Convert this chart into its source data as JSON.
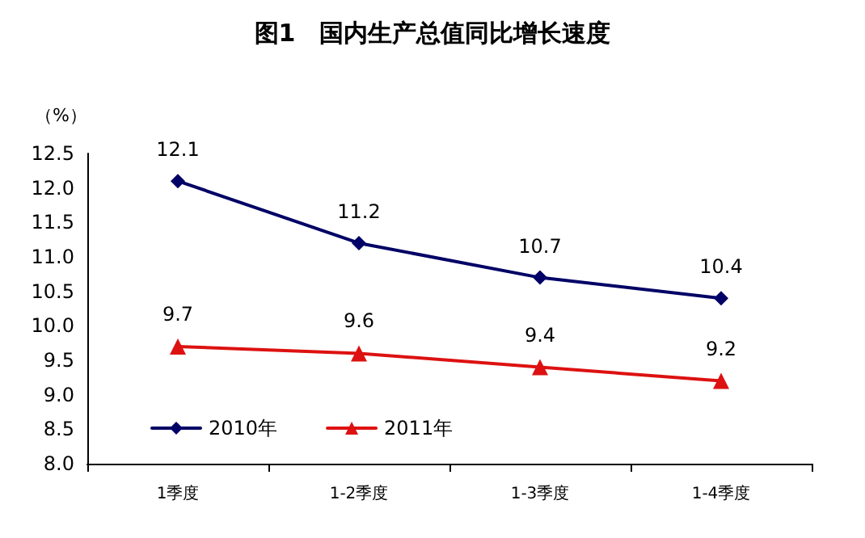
{
  "chart_data": {
    "type": "line",
    "title": "图1　国内生产总值同比增长速度",
    "ylabel": "（%）",
    "categories": [
      "1季度",
      "1-2季度",
      "1-3季度",
      "1-4季度"
    ],
    "series": [
      {
        "name": "2010年",
        "color": "#000066",
        "marker": "diamond",
        "values": [
          12.1,
          11.2,
          10.7,
          10.4
        ]
      },
      {
        "name": "2011年",
        "color": "#dd1111",
        "marker": "triangle",
        "values": [
          9.7,
          9.6,
          9.4,
          9.2
        ]
      }
    ],
    "ylim": [
      8.0,
      12.5
    ],
    "yticks": [
      {
        "value": 8,
        "label": "8.0"
      },
      {
        "value": 8.5,
        "label": "8.5"
      },
      {
        "value": 9,
        "label": "9.0"
      },
      {
        "value": 9.5,
        "label": "9.5"
      },
      {
        "value": 10,
        "label": "10.0"
      },
      {
        "value": 10.5,
        "label": "10.5"
      },
      {
        "value": 11,
        "label": "11.0"
      },
      {
        "value": 11.5,
        "label": "11.5"
      },
      {
        "value": 12,
        "label": "12.0"
      },
      {
        "value": 12.5,
        "label": "12.5"
      }
    ],
    "data_labels": true,
    "grid": false,
    "legend": "bottom left",
    "line_style": "solid"
  }
}
